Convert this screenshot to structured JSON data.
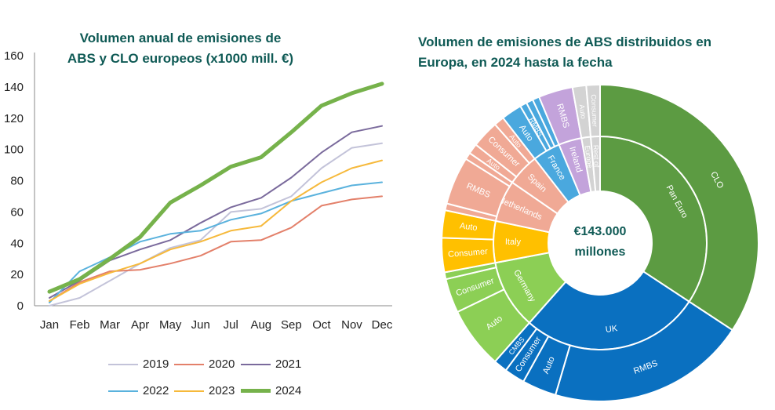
{
  "line_chart": {
    "title_line1": "Volumen anual de emisiones de",
    "title_line2": "ABS y CLO europeos (x1000 mill. €)"
  },
  "sunburst": {
    "title_line1": "Volumen de emisiones de ABS distribuidos en",
    "title_line2": "Europa, en 2024 hasta la fecha",
    "center_line1": "€143.000",
    "center_line2": "millones"
  },
  "chart_data": [
    {
      "type": "line",
      "title": "Volumen anual de emisiones de ABS y CLO europeos (x1000 mill. €)",
      "xlabel": "",
      "ylabel": "",
      "ylim": [
        0,
        160
      ],
      "yticks": [
        0,
        20,
        40,
        60,
        80,
        100,
        120,
        140,
        160
      ],
      "x": [
        "Jan",
        "Feb",
        "Mar",
        "Apr",
        "May",
        "Jun",
        "Jul",
        "Aug",
        "Sep",
        "Oct",
        "Nov",
        "Dec"
      ],
      "legend_position": "bottom",
      "series": [
        {
          "name": "2019",
          "color": "#c3c3d9",
          "width": 2,
          "values": [
            0,
            5,
            16,
            27,
            37,
            42,
            60,
            62,
            70,
            88,
            101,
            104
          ]
        },
        {
          "name": "2020",
          "color": "#e3806a",
          "width": 2,
          "values": [
            3,
            15,
            22,
            23,
            27,
            32,
            41,
            42,
            50,
            64,
            68,
            70
          ]
        },
        {
          "name": "2021",
          "color": "#7a6a9c",
          "width": 2,
          "values": [
            5,
            16,
            29,
            36,
            42,
            53,
            63,
            69,
            82,
            98,
            111,
            115
          ]
        },
        {
          "name": "2022",
          "color": "#5ab2dd",
          "width": 2,
          "values": [
            2,
            22,
            31,
            41,
            46,
            48,
            55,
            59,
            67,
            72,
            77,
            79
          ]
        },
        {
          "name": "2023",
          "color": "#f6b93b",
          "width": 2,
          "values": [
            3,
            14,
            21,
            27,
            36,
            41,
            48,
            51,
            67,
            79,
            88,
            93
          ]
        },
        {
          "name": "2024",
          "color": "#76b24b",
          "width": 5,
          "values": [
            9,
            17,
            30,
            44,
            66,
            77,
            89,
            95,
            111,
            128,
            136,
            142
          ]
        }
      ]
    },
    {
      "type": "sunburst",
      "title": "Volumen de emisiones de ABS distribuidos en Europa, en 2024 hasta la fecha",
      "total": "€143.000 millones",
      "units": "x1000 mill. €",
      "inner": [
        {
          "label": "Pan Euro",
          "value": 49,
          "color": "#5c9b42"
        },
        {
          "label": "UK",
          "value": 39,
          "color": "#0a70c0"
        },
        {
          "label": "Germany",
          "value": 15,
          "color": "#8ccf55"
        },
        {
          "label": "Italy",
          "value": 9,
          "color": "#ffc000"
        },
        {
          "label": "Netherlands",
          "value": 9,
          "color": "#f0a995"
        },
        {
          "label": "Spain",
          "value": 7,
          "color": "#f0a995"
        },
        {
          "label": "France",
          "value": 6,
          "color": "#4aa8de"
        },
        {
          "label": "Ireland",
          "value": 5,
          "color": "#c3a3db"
        },
        {
          "label": "Europe",
          "value": 2,
          "color": "#d3d3d3"
        },
        {
          "label": "Rest of",
          "value": 2,
          "color": "#d3d3d3"
        }
      ],
      "outer": [
        {
          "label": "CLO",
          "parent": "Pan Euro",
          "value": 49,
          "color": "#5c9b42"
        },
        {
          "label": "RMBS",
          "parent": "UK",
          "value": 29,
          "color": "#0a70c0"
        },
        {
          "label": "Auto",
          "parent": "UK",
          "value": 5,
          "color": "#0a70c0"
        },
        {
          "label": "Consumer",
          "parent": "UK",
          "value": 3,
          "color": "#0a70c0"
        },
        {
          "label": "CMBS",
          "parent": "UK",
          "value": 2,
          "color": "#0a70c0"
        },
        {
          "label": "Auto",
          "parent": "Germany",
          "value": 9,
          "color": "#8ccf55"
        },
        {
          "label": "Consumer",
          "parent": "Germany",
          "value": 5,
          "color": "#8ccf55"
        },
        {
          "label": "",
          "parent": "Germany",
          "value": 1,
          "color": "#8ccf55"
        },
        {
          "label": "Consumer",
          "parent": "Italy",
          "value": 5,
          "color": "#ffc000"
        },
        {
          "label": "Auto",
          "parent": "Italy",
          "value": 4,
          "color": "#ffc000"
        },
        {
          "label": "",
          "parent": "Netherlands",
          "value": 1,
          "color": "#f0a995"
        },
        {
          "label": "RMBS",
          "parent": "Netherlands",
          "value": 7,
          "color": "#f0a995"
        },
        {
          "label": "",
          "parent": "Netherlands",
          "value": 1,
          "color": "#f0a995"
        },
        {
          "label": "Auto",
          "parent": "Spain",
          "value": 1.5,
          "color": "#f0a995"
        },
        {
          "label": "Consumer",
          "parent": "Spain",
          "value": 4,
          "color": "#f0a995"
        },
        {
          "label": "Auto",
          "parent": "Spain",
          "value": 1.5,
          "color": "#f0a995"
        },
        {
          "label": "Auto",
          "parent": "France",
          "value": 3,
          "color": "#4aa8de"
        },
        {
          "label": "RMBS",
          "parent": "France",
          "value": 1,
          "color": "#4aa8de"
        },
        {
          "label": "",
          "parent": "France",
          "value": 1,
          "color": "#4aa8de"
        },
        {
          "label": "",
          "parent": "France",
          "value": 1,
          "color": "#4aa8de"
        },
        {
          "label": "RMBS",
          "parent": "Ireland",
          "value": 5,
          "color": "#c3a3db"
        },
        {
          "label": "Auto",
          "parent": "Europe",
          "value": 2,
          "color": "#d3d3d3"
        },
        {
          "label": "Consumer",
          "parent": "Rest of",
          "value": 2,
          "color": "#d3d3d3"
        }
      ]
    }
  ]
}
